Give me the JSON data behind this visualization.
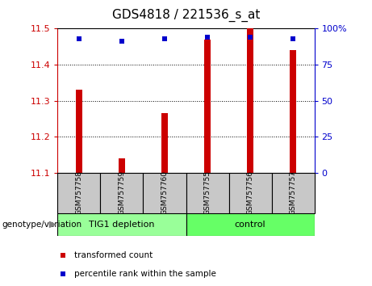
{
  "title": "GDS4818 / 221536_s_at",
  "samples": [
    "GSM757758",
    "GSM757759",
    "GSM757760",
    "GSM757755",
    "GSM757756",
    "GSM757757"
  ],
  "bar_values": [
    11.33,
    11.14,
    11.265,
    11.47,
    11.5,
    11.44
  ],
  "percentile_values": [
    93,
    91,
    93,
    94,
    94,
    93
  ],
  "y_min": 11.1,
  "y_max": 11.5,
  "y_ticks": [
    11.1,
    11.2,
    11.3,
    11.4,
    11.5
  ],
  "right_y_ticks": [
    0,
    25,
    50,
    75,
    100
  ],
  "right_y_labels": [
    "0",
    "25",
    "50",
    "75",
    "100%"
  ],
  "bar_color": "#cc0000",
  "dot_color": "#0000cc",
  "group1_label": "TIG1 depletion",
  "group2_label": "control",
  "group1_color": "#99ff99",
  "group2_color": "#66ff66",
  "group_bg_color": "#c8c8c8",
  "legend_bar_label": "transformed count",
  "legend_dot_label": "percentile rank within the sample",
  "genotype_label": "genotype/variation",
  "title_fontsize": 11,
  "axis_label_color_left": "#cc0000",
  "axis_label_color_right": "#0000cc",
  "group1_indices": [
    0,
    1,
    2
  ],
  "group2_indices": [
    3,
    4,
    5
  ],
  "bar_width": 0.15
}
